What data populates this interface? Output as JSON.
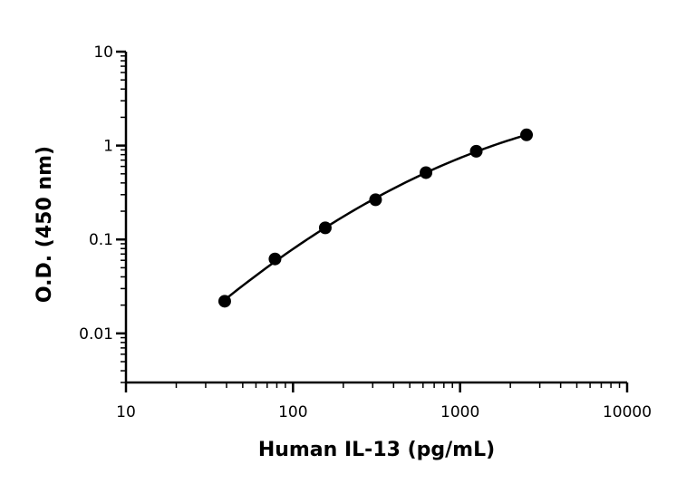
{
  "chart_data": {
    "type": "scatter",
    "title": "",
    "xlabel": "Human IL-13 (pg/mL)",
    "ylabel": "O.D. (450 nm)",
    "xscale": "log",
    "yscale": "log",
    "xlim": [
      10,
      10000
    ],
    "ylim": [
      0.003,
      10
    ],
    "x_ticks": [
      10,
      100,
      1000,
      10000
    ],
    "x_tick_labels": [
      "10",
      "100",
      "1000",
      "10000"
    ],
    "y_ticks": [
      0.01,
      0.1,
      1,
      10
    ],
    "y_tick_labels": [
      "0.01",
      "0.1",
      "1",
      "10"
    ],
    "grid": false,
    "legend": "none",
    "color": "#000000",
    "fit_curve": true,
    "series": [
      {
        "x": [
          39,
          78,
          156,
          312,
          625,
          1250,
          2500
        ],
        "y": [
          0.022,
          0.062,
          0.133,
          0.265,
          0.515,
          0.87,
          1.3
        ]
      }
    ]
  }
}
